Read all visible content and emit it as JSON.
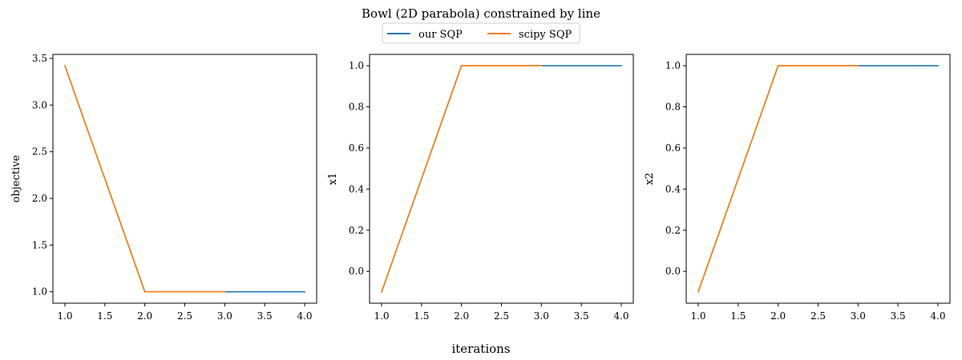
{
  "figure": {
    "title": "Bowl (2D parabola) constrained by line",
    "xlabel": "iterations"
  },
  "legend": {
    "location": "top-center",
    "entries": [
      {
        "label": "our SQP",
        "color": "#1f77b4"
      },
      {
        "label": "scipy SQP",
        "color": "#ff7f0e"
      }
    ]
  },
  "chart_data": [
    {
      "type": "line",
      "xlabel": "iterations",
      "ylabel": "objective",
      "xlim": [
        1.0,
        4.0
      ],
      "ylim": [
        0.8775,
        3.5425
      ],
      "xticks": [
        "1.0",
        "1.5",
        "2.0",
        "2.5",
        "3.0",
        "3.5",
        "4.0"
      ],
      "yticks": [
        "1.0",
        "1.5",
        "2.0",
        "2.5",
        "3.0",
        "3.5"
      ],
      "series": [
        {
          "name": "our SQP",
          "color": "#1f77b4",
          "x": [
            1,
            2,
            3,
            4
          ],
          "y": [
            3.42,
            1.0,
            1.0,
            1.0
          ]
        },
        {
          "name": "scipy SQP",
          "color": "#ff7f0e",
          "x": [
            1,
            2,
            3
          ],
          "y": [
            3.42,
            1.0,
            1.0
          ]
        }
      ]
    },
    {
      "type": "line",
      "xlabel": "iterations",
      "ylabel": "x1",
      "xlim": [
        1.0,
        4.0
      ],
      "ylim": [
        -0.155,
        1.055
      ],
      "xticks": [
        "1.0",
        "1.5",
        "2.0",
        "2.5",
        "3.0",
        "3.5",
        "4.0"
      ],
      "yticks": [
        "0.0",
        "0.2",
        "0.4",
        "0.6",
        "0.8",
        "1.0"
      ],
      "series": [
        {
          "name": "our SQP",
          "color": "#1f77b4",
          "x": [
            1,
            2,
            3,
            4
          ],
          "y": [
            -0.1,
            1.0,
            1.0,
            1.0
          ]
        },
        {
          "name": "scipy SQP",
          "color": "#ff7f0e",
          "x": [
            1,
            2,
            3
          ],
          "y": [
            -0.1,
            1.0,
            1.0
          ]
        }
      ]
    },
    {
      "type": "line",
      "xlabel": "iterations",
      "ylabel": "x2",
      "xlim": [
        1.0,
        4.0
      ],
      "ylim": [
        -0.155,
        1.055
      ],
      "xticks": [
        "1.0",
        "1.5",
        "2.0",
        "2.5",
        "3.0",
        "3.5",
        "4.0"
      ],
      "yticks": [
        "0.0",
        "0.2",
        "0.4",
        "0.6",
        "0.8",
        "1.0"
      ],
      "series": [
        {
          "name": "our SQP",
          "color": "#1f77b4",
          "x": [
            1,
            2,
            3,
            4
          ],
          "y": [
            -0.1,
            1.0,
            1.0,
            1.0
          ]
        },
        {
          "name": "scipy SQP",
          "color": "#ff7f0e",
          "x": [
            1,
            2,
            3
          ],
          "y": [
            -0.1,
            1.0,
            1.0
          ]
        }
      ]
    }
  ]
}
